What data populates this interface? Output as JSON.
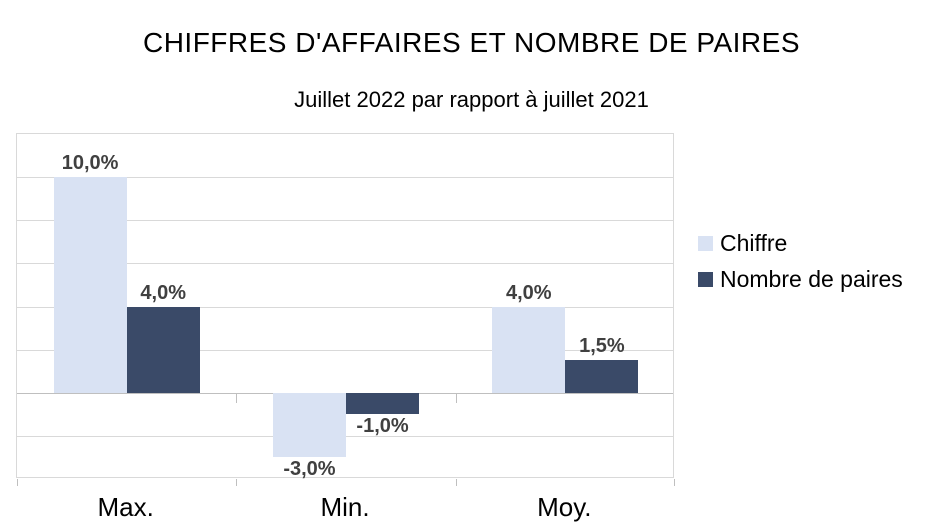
{
  "chart_data": {
    "type": "bar",
    "title": "CHIFFRES D'AFFAIRES ET NOMBRE DE PAIRES",
    "subtitle": "Juillet 2022 par rapport à juillet 2021",
    "categories": [
      "Max.",
      "Min.",
      "Moy."
    ],
    "series": [
      {
        "name": "Chiffre",
        "color": "#D9E2F3",
        "values": [
          10.0,
          -3.0,
          4.0
        ],
        "labels": [
          "10,0%",
          "-3,0%",
          "4,0%"
        ]
      },
      {
        "name": "Nombre de paires",
        "color": "#3A4A68",
        "values": [
          4.0,
          -1.0,
          1.5
        ],
        "labels": [
          "4,0%",
          "-1,0%",
          "1,5%"
        ]
      }
    ],
    "ylim": [
      -4,
      12
    ],
    "y_major_unit": 2,
    "y_axis_tick_labels_visible": false,
    "grid": true,
    "legend_position": "right",
    "colors": {
      "gridline": "#D9D9D9",
      "plot_border": "#D9D9D9",
      "zero_axis_line": "#BFBFBF",
      "data_label": "#404040",
      "text": "#000000",
      "background": "#FFFFFF"
    }
  }
}
